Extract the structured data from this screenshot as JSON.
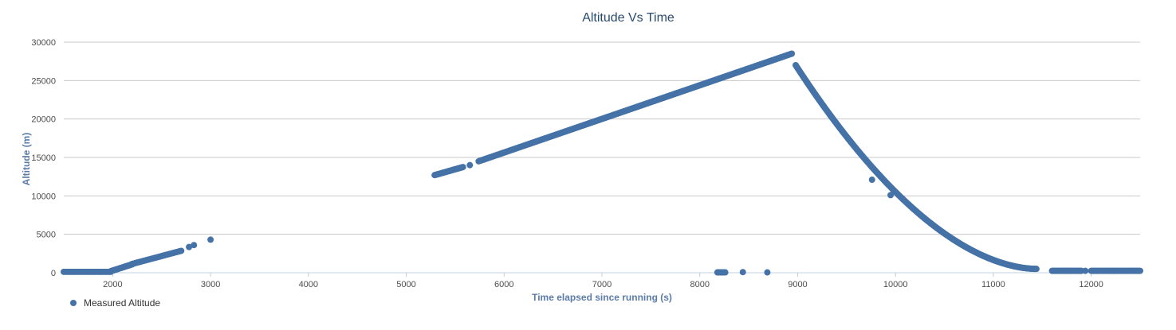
{
  "chart_data": {
    "type": "scatter",
    "title": "Altitude Vs Time",
    "xlabel": "Time elapsed since running (s)",
    "ylabel": "Altitude (m)",
    "xlim": [
      1500,
      12500
    ],
    "ylim": [
      0,
      30000
    ],
    "xticks": [
      2000,
      3000,
      4000,
      5000,
      6000,
      7000,
      8000,
      9000,
      10000,
      11000,
      12000
    ],
    "yticks": [
      0,
      5000,
      10000,
      15000,
      20000,
      25000,
      30000
    ],
    "grid": "horizontal",
    "legend": "bottom-left",
    "series": [
      {
        "name": "Measured Altitude",
        "color": "#4572a7",
        "segments": [
          {
            "kind": "linear",
            "x0": 1500,
            "x1": 1980,
            "y0": 120,
            "y1": 120,
            "n": 28
          },
          {
            "kind": "linear",
            "x0": 1980,
            "x1": 2200,
            "y0": 200,
            "y1": 1100,
            "n": 30
          },
          {
            "kind": "linear",
            "x0": 2200,
            "x1": 2700,
            "y0": 1150,
            "y1": 2850,
            "n": 30
          },
          {
            "kind": "linear",
            "x0": 5290,
            "x1": 5580,
            "y0": 12700,
            "y1": 13750,
            "n": 34
          },
          {
            "kind": "linear",
            "x0": 5740,
            "x1": 8940,
            "y0": 14500,
            "y1": 28500,
            "n": 330
          },
          {
            "kind": "descent",
            "x0": 8980,
            "x1": 11440,
            "y0": 27000,
            "y1": 500,
            "p": 0.55,
            "n": 330
          },
          {
            "kind": "linear",
            "x0": 8180,
            "x1": 8260,
            "y0": 50,
            "y1": 50,
            "n": 10
          },
          {
            "kind": "linear",
            "x0": 11600,
            "x1": 11900,
            "y0": 250,
            "y1": 250,
            "n": 30
          },
          {
            "kind": "linear",
            "x0": 12000,
            "x1": 12500,
            "y0": 250,
            "y1": 250,
            "n": 45
          }
        ],
        "points": [
          [
            2780,
            3350
          ],
          [
            2830,
            3600
          ],
          [
            3000,
            4300
          ],
          [
            5650,
            14000
          ],
          [
            9760,
            12100
          ],
          [
            9950,
            10100
          ],
          [
            8440,
            80
          ],
          [
            8690,
            50
          ],
          [
            11940,
            250
          ]
        ]
      }
    ]
  }
}
